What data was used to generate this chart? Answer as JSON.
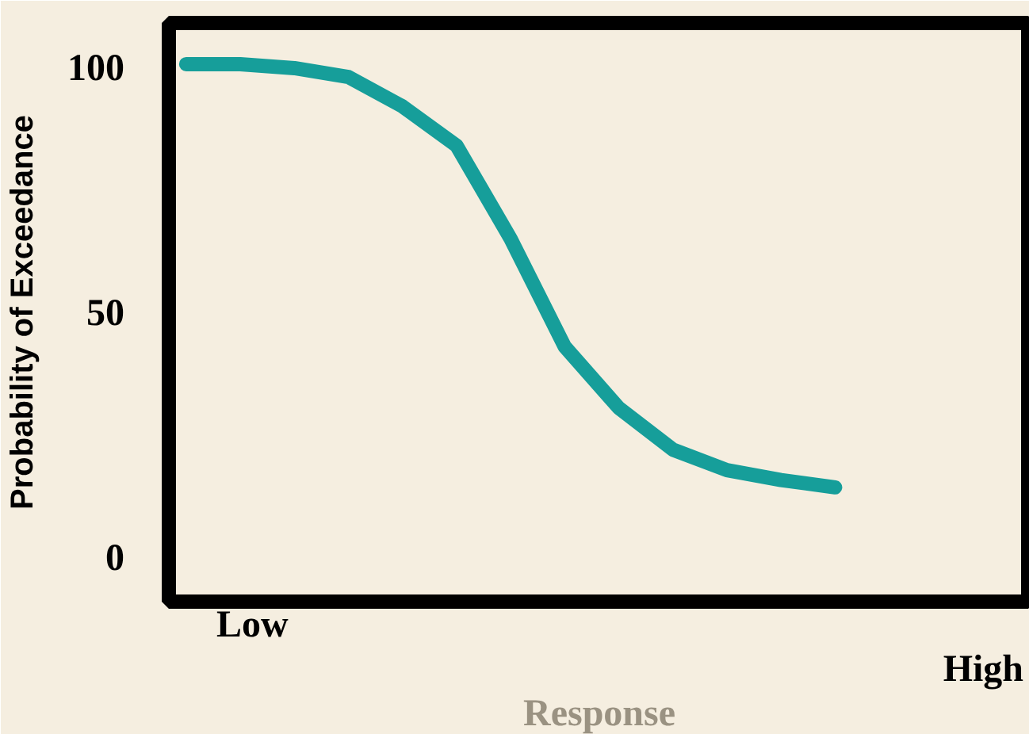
{
  "chart_data": {
    "type": "line",
    "xlabel": "Response",
    "ylabel": "Probability of Exceedance",
    "categories": [
      null,
      null,
      null,
      null,
      null,
      null,
      null,
      null,
      null,
      null,
      null,
      null,
      null
    ],
    "series": [
      {
        "color": "#169e9a",
        "values": [
          100.6,
          100.6,
          99.8,
          98,
          92,
          84,
          65,
          43,
          30.5,
          22,
          17.8,
          15.8,
          14.3
        ]
      }
    ],
    "ylim": [
      -9,
      109
    ],
    "yticks": [
      0,
      50,
      100
    ],
    "annotations": [
      "Low",
      "High"
    ]
  }
}
